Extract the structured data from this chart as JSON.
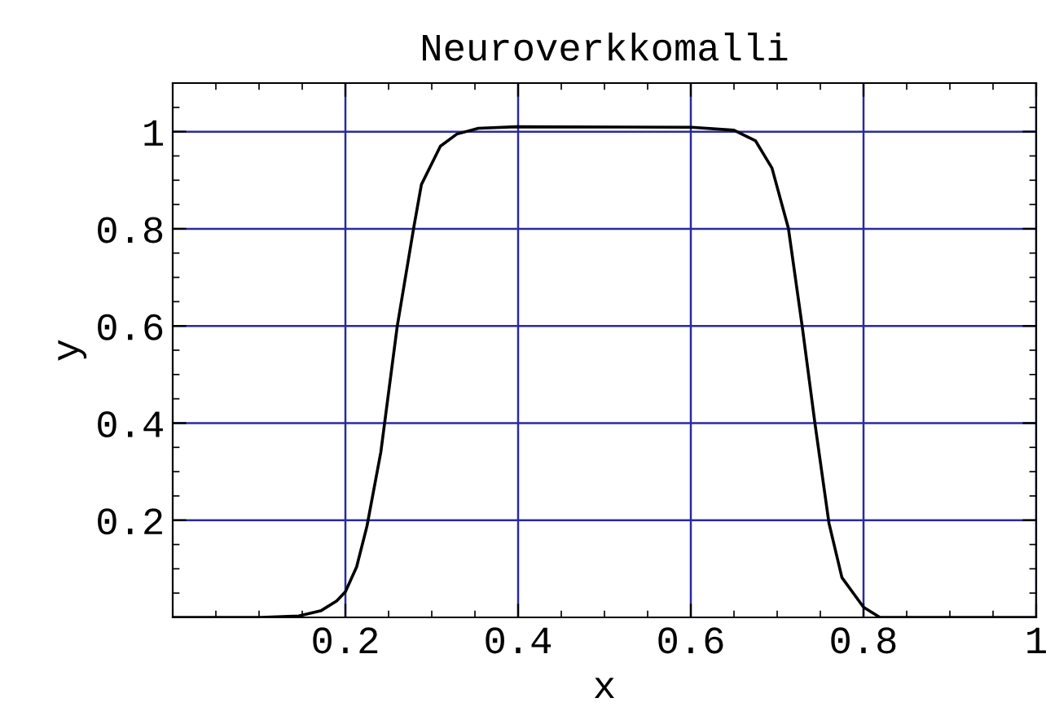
{
  "chart_data": {
    "type": "line",
    "title": "Neuroverkkomalli",
    "xlabel": "x",
    "ylabel": "y",
    "xlim": [
      0,
      1.0
    ],
    "ylim": [
      0,
      1.1
    ],
    "xticks": [
      0.2,
      0.4,
      0.6,
      0.8,
      1
    ],
    "yticks": [
      0.2,
      0.4,
      0.6,
      0.8,
      1
    ],
    "grid": true,
    "series": [
      {
        "color": "#000000",
        "x": [
          0,
          0.102,
          0.146,
          0.172,
          0.19,
          0.2,
          0.213,
          0.225,
          0.241,
          0.26,
          0.279,
          0.288,
          0.31,
          0.329,
          0.354,
          0.398,
          0.601,
          0.65,
          0.675,
          0.694,
          0.713,
          0.729,
          0.744,
          0.76,
          0.775,
          0.8,
          0.819,
          1.0
        ],
        "values": [
          0,
          0,
          0.003,
          0.014,
          0.034,
          0.053,
          0.104,
          0.188,
          0.34,
          0.599,
          0.801,
          0.891,
          0.97,
          0.995,
          1.007,
          1.01,
          1.009,
          1.003,
          0.981,
          0.925,
          0.801,
          0.599,
          0.396,
          0.194,
          0.082,
          0.021,
          0,
          0
        ]
      }
    ]
  }
}
